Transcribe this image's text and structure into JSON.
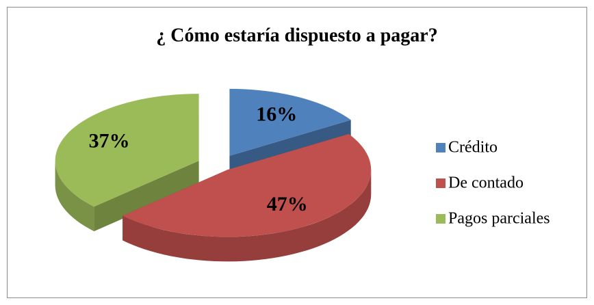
{
  "chart_data": {
    "type": "pie",
    "title": "¿ Cómo estaría dispuesto a pagar?",
    "categories": [
      "Crédito",
      "De contado",
      "Pagos parciales"
    ],
    "values": [
      16,
      47,
      37
    ],
    "value_labels": [
      "16%",
      "47%",
      "37%"
    ],
    "colors": [
      "#4f81bd",
      "#c0504d",
      "#9bbb59"
    ],
    "legend": "right"
  }
}
